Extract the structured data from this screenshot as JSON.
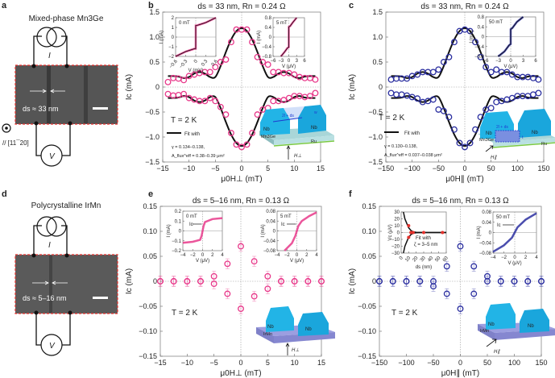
{
  "colors": {
    "pink": "#e8388a",
    "navy": "#2b2fa0",
    "nb": "#22b4e6",
    "irmn": "#9c9ee0",
    "mn3ge": "#a9d6d8",
    "ru": "#7ac943",
    "sem_border": "#e5322d"
  },
  "panels": {
    "a": {
      "letter": "a",
      "title": "Mixed-phase Mn3Ge",
      "current_label": "I",
      "voltage_label": "V",
      "ds_label": "ds ≈ 33 nm",
      "orientation": "// [11¯20]"
    },
    "d": {
      "letter": "d",
      "title": "Polycrystalline IrMn",
      "current_label": "I",
      "voltage_label": "V",
      "ds_label": "ds ≈ 5–16 nm"
    },
    "b": {
      "letter": "b",
      "temperature": "T = 2 K",
      "legend": "Fit with",
      "gamma": "γ = 0.134–0.138,",
      "aflux": "A_flux^eff = 0.38–0.39 μm²",
      "device": {
        "nb1": "Nb",
        "nb2": "Nb",
        "layer": "Mn3Ge",
        "sub": "Ru",
        "field": "H⊥",
        "gap": "2l + ds",
        "w": "w"
      }
    },
    "c": {
      "letter": "c",
      "temperature": "T = 2 K",
      "legend": "Fit with",
      "gamma": "γ = 0.130–0.138,",
      "aflux": "A_flux^eff = 0.037–0.038 μm²",
      "device": {
        "nb1": "Nb",
        "nb2": "Nb",
        "layer": "Mn3Ge",
        "sub": "Ru",
        "field": "H∥",
        "gap": "2l + ds",
        "w": "t"
      }
    },
    "e": {
      "letter": "e",
      "temperature": "T = 2 K",
      "device": {
        "nb1": "Nb",
        "nb2": "Nb",
        "layer": "IrMn",
        "field": "H⊥"
      }
    },
    "f": {
      "letter": "f",
      "temperature": "T = 2 K",
      "device": {
        "nb1": "Nb",
        "nb2": "Nb",
        "layer": "IrMn",
        "field": "H∥"
      }
    }
  },
  "chart_data": [
    {
      "id": "b",
      "type": "scatter",
      "title": "ds = 33 nm, Rn = 0.24 Ω",
      "xlabel": "μ0H⊥ (mT)",
      "ylabel": "Ic (mA)",
      "xlim": [
        -15,
        15
      ],
      "ylim": [
        -1.5,
        1.5
      ],
      "xticks": [
        -15,
        -10,
        -5,
        0,
        5,
        10,
        15
      ],
      "yticks": [
        -1.5,
        -1.0,
        -0.5,
        0,
        0.5,
        1.0,
        1.5
      ],
      "ytick_labels": [
        "−1.5",
        "−1.0",
        "−0.5",
        "0",
        "0.5",
        "1.0",
        "1.5"
      ],
      "x": [
        -14,
        -13,
        -12,
        -11,
        -10,
        -9,
        -8,
        -7,
        -6,
        -5,
        -4,
        -3,
        -2,
        -1,
        0,
        1,
        2,
        3,
        4,
        5,
        6,
        7,
        8,
        9,
        10,
        11,
        12,
        13,
        14
      ],
      "series": [
        {
          "name": "Ic+ data",
          "values": [
            0.1,
            0.18,
            0.17,
            0.14,
            0.22,
            0.25,
            0.28,
            0.3,
            0.3,
            0.4,
            0.5,
            0.55,
            0.9,
            1.15,
            1.15,
            1.15,
            0.9,
            0.6,
            0.5,
            0.45,
            0.3,
            0.3,
            0.28,
            0.28,
            0.25,
            0.2,
            0.18,
            0.18,
            0.15
          ]
        },
        {
          "name": "Ic− data",
          "values": [
            -0.14,
            -0.17,
            -0.16,
            -0.14,
            -0.22,
            -0.25,
            -0.28,
            -0.28,
            -0.22,
            -0.28,
            -0.4,
            -0.55,
            -0.92,
            -1.15,
            -1.2,
            -1.15,
            -0.92,
            -0.55,
            -0.45,
            -0.42,
            -0.28,
            -0.28,
            -0.26,
            -0.22,
            -0.18,
            -0.18,
            -0.2,
            -0.18,
            -0.12
          ]
        },
        {
          "name": "Fit",
          "values": [
            0.22,
            0.22,
            0.21,
            0.18,
            0.2,
            0.27,
            0.3,
            0.27,
            0.2,
            0.2,
            0.42,
            0.7,
            0.95,
            1.12,
            1.18,
            1.12,
            0.95,
            0.7,
            0.42,
            0.2,
            0.2,
            0.27,
            0.3,
            0.27,
            0.2,
            0.18,
            0.21,
            0.22,
            0.22
          ],
          "mirror": true
        }
      ],
      "insets": [
        {
          "label": "0 mT",
          "xlabel": "V (mV)",
          "ylabel": "I (mA)",
          "xlim": [
            -0.6,
            0.6
          ],
          "ylim": [
            -2,
            2
          ],
          "xticks": [
            -0.6,
            -0.3,
            0,
            0.3,
            0.6
          ],
          "yticks": [
            -2,
            -1,
            0,
            1,
            2
          ],
          "rotate_x": true,
          "curve": {
            "x": [
              -0.6,
              -0.3,
              -0.05,
              -0.01,
              0,
              0,
              0.01,
              0.05,
              0.3,
              0.6
            ],
            "y": [
              -2,
              -1.5,
              -1.22,
              -1.2,
              -1.2,
              1.2,
              1.2,
              1.22,
              1.5,
              2
            ]
          }
        },
        {
          "label": "5 mT",
          "xlabel": "V (μV)",
          "ylabel": "I (mA)",
          "xlim": [
            -6,
            6
          ],
          "ylim": [
            -0.8,
            0.8
          ],
          "xticks": [
            -6,
            -3,
            0,
            3,
            6
          ],
          "yticks": [
            -0.8,
            -0.4,
            0,
            0.4,
            0.8
          ],
          "curve": {
            "x": [
              -3,
              -1.5,
              -0.5,
              0,
              0,
              0.5,
              1.5,
              3
            ],
            "y": [
              -0.8,
              -0.6,
              -0.45,
              -0.42,
              0.42,
              0.45,
              0.6,
              0.8
            ]
          }
        }
      ]
    },
    {
      "id": "c",
      "type": "scatter",
      "title": "ds = 33 nm, Rn = 0.24 Ω",
      "xlabel": "μ0H∥ (mT)",
      "ylabel": "Ic (mA)",
      "xlim": [
        -150,
        150
      ],
      "ylim": [
        -1.5,
        1.5
      ],
      "xticks": [
        -150,
        -100,
        -50,
        0,
        50,
        100,
        150
      ],
      "yticks": [
        -1.5,
        -1.0,
        -0.5,
        0,
        0.5,
        1.0,
        1.5
      ],
      "ytick_labels": [
        "−1.5",
        "−1.0",
        "−0.5",
        "0",
        "0.5",
        "1.0",
        "1.5"
      ],
      "x": [
        -140,
        -130,
        -120,
        -110,
        -100,
        -90,
        -80,
        -70,
        -60,
        -50,
        -40,
        -30,
        -20,
        -10,
        0,
        10,
        20,
        30,
        40,
        50,
        60,
        70,
        80,
        90,
        100,
        110,
        120,
        130,
        140
      ],
      "series": [
        {
          "name": "Ic+ data",
          "values": [
            0.15,
            0.17,
            0.17,
            0.17,
            0.22,
            0.25,
            0.3,
            0.3,
            0.3,
            0.35,
            0.5,
            0.6,
            0.9,
            1.12,
            1.15,
            1.12,
            0.9,
            0.6,
            0.4,
            0.3,
            0.35,
            0.3,
            0.3,
            0.25,
            0.2,
            0.2,
            0.2,
            0.18,
            0.15
          ]
        },
        {
          "name": "Ic− data",
          "values": [
            -0.12,
            -0.15,
            -0.15,
            -0.17,
            -0.2,
            -0.23,
            -0.3,
            -0.28,
            -0.25,
            -0.45,
            -0.48,
            -0.6,
            -0.85,
            -1.12,
            -1.2,
            -1.12,
            -0.85,
            -0.6,
            -0.45,
            -0.42,
            -0.3,
            -0.28,
            -0.25,
            -0.22,
            -0.18,
            -0.18,
            -0.18,
            -0.15,
            -0.12
          ]
        },
        {
          "name": "Fit",
          "values": [
            0.22,
            0.22,
            0.21,
            0.18,
            0.2,
            0.27,
            0.3,
            0.27,
            0.2,
            0.2,
            0.42,
            0.7,
            0.95,
            1.12,
            1.18,
            1.12,
            0.95,
            0.7,
            0.42,
            0.2,
            0.2,
            0.27,
            0.3,
            0.27,
            0.2,
            0.18,
            0.21,
            0.22,
            0.22
          ],
          "mirror": true
        }
      ],
      "insets": [
        {
          "label": "50 mT",
          "xlabel": "V (μV)",
          "ylabel": "I (mA)",
          "xlim": [
            -6,
            6
          ],
          "ylim": [
            -0.8,
            0.8
          ],
          "xticks": [
            -6,
            -3,
            0,
            3,
            6
          ],
          "yticks": [
            -0.8,
            -0.4,
            0,
            0.4,
            0.8
          ],
          "curve": {
            "x": [
              -3,
              -1.5,
              -0.4,
              0,
              0,
              0.4,
              1.5,
              3
            ],
            "y": [
              -0.8,
              -0.6,
              -0.35,
              -0.3,
              0.3,
              0.35,
              0.6,
              0.8
            ]
          }
        }
      ]
    },
    {
      "id": "e",
      "type": "scatter",
      "title": "ds = 5–16 nm, Rn = 0.13 Ω",
      "xlabel": "μ0H⊥ (mT)",
      "ylabel": "Ic (mA)",
      "xlim": [
        -15,
        15
      ],
      "ylim": [
        -0.15,
        0.15
      ],
      "xticks": [
        -15,
        -10,
        -5,
        0,
        5,
        10,
        15
      ],
      "yticks": [
        -0.15,
        -0.1,
        -0.05,
        0,
        0.05,
        0.1,
        0.15
      ],
      "ytick_labels": [
        "−0.15",
        "−0.10",
        "−0.05",
        "0",
        "0.05",
        "0.10",
        "0.15"
      ],
      "error": 0.01,
      "x": [
        -15,
        -12.5,
        -10,
        -7.5,
        -5,
        -2.5,
        0,
        2.5,
        5,
        7.5,
        10,
        12.5,
        15
      ],
      "series": [
        {
          "name": "Ic+ data",
          "values": [
            0,
            0,
            0,
            0,
            0.01,
            0.035,
            0.07,
            0.04,
            0.01,
            0,
            0,
            0,
            0
          ]
        },
        {
          "name": "Ic− data",
          "values": [
            0,
            0,
            0,
            0,
            -0.005,
            -0.025,
            -0.055,
            -0.03,
            -0.015,
            0,
            0,
            0,
            0
          ]
        }
      ],
      "insets": [
        {
          "label": "0 mT",
          "arrow_label": "Ic",
          "xlabel": "V (μV)",
          "ylabel": "I (mA)",
          "xlim": [
            -4,
            4
          ],
          "ylim": [
            -0.2,
            0.2
          ],
          "xticks": [
            -4,
            -2,
            0,
            2,
            4
          ],
          "yticks": [
            -0.2,
            -0.1,
            0,
            0.1,
            0.2
          ],
          "curve": {
            "x": [
              -4,
              -2,
              -0.5,
              -0.2,
              0,
              0.2,
              0.5,
              2,
              4
            ],
            "y": [
              -0.12,
              -0.11,
              -0.09,
              -0.05,
              0,
              0.05,
              0.09,
              0.12,
              0.13
            ]
          }
        },
        {
          "label": "5 mT",
          "arrow_label": "Ic",
          "xlabel": "V (μV)",
          "ylabel": "I (mA)",
          "xlim": [
            -4,
            4
          ],
          "ylim": [
            -0.08,
            0.08
          ],
          "xticks": [
            -4,
            -2,
            0,
            2,
            4
          ],
          "yticks": [
            -0.08,
            -0.04,
            0,
            0.04,
            0.08
          ],
          "curve": {
            "x": [
              -2.5,
              -1,
              -0.3,
              0,
              0.3,
              1,
              2.5,
              4
            ],
            "y": [
              -0.08,
              -0.05,
              -0.02,
              0,
              0.02,
              0.04,
              0.06,
              0.075
            ]
          }
        }
      ]
    },
    {
      "id": "f",
      "type": "scatter",
      "title": "ds = 5–16 nm, Rn = 0.13 Ω",
      "xlabel": "μ0H∥ (mT)",
      "ylabel": "Ic (mA)",
      "xlim": [
        -150,
        150
      ],
      "ylim": [
        -0.15,
        0.15
      ],
      "xticks": [
        -150,
        -100,
        -50,
        0,
        50,
        100,
        150
      ],
      "yticks": [
        -0.15,
        -0.1,
        -0.05,
        0,
        0.05,
        0.1,
        0.15
      ],
      "ytick_labels": [
        "−0.15",
        "−0.10",
        "−0.05",
        "0",
        "0.05",
        "0.10",
        "0.15"
      ],
      "error": 0.01,
      "x": [
        -150,
        -125,
        -100,
        -75,
        -50,
        -25,
        0,
        25,
        50,
        75,
        100,
        125,
        150
      ],
      "series": [
        {
          "name": "Ic+ data",
          "values": [
            0,
            0,
            0,
            0,
            0,
            0.03,
            0.07,
            0.03,
            0.01,
            0,
            0,
            0,
            0
          ]
        },
        {
          "name": "Ic− data",
          "values": [
            0,
            0,
            0,
            0,
            -0.01,
            -0.025,
            -0.055,
            -0.025,
            0,
            0,
            0,
            0,
            0
          ]
        }
      ],
      "insets": [
        {
          "label": "",
          "fit_text": "Fit with",
          "fit_text2": "ζ = 3–5 nm",
          "xlabel": "ds (nm)",
          "ylabel": "Vc (μV)",
          "xlim": [
            0,
            60
          ],
          "ylim": [
            -30,
            30
          ],
          "xticks": [
            0,
            10,
            20,
            30,
            40,
            50,
            60
          ],
          "yticks": [
            -30,
            -20,
            -10,
            0,
            10,
            20,
            30
          ],
          "rotate_x": true,
          "curve": {
            "x": [
              3,
              5,
              8,
              10,
              13,
              16,
              20,
              30,
              60
            ],
            "y": [
              30,
              20,
              12,
              7,
              3,
              1,
              0.3,
              0,
              0
            ]
          },
          "curve_mirror": true,
          "points": {
            "x": [
              10,
              10,
              13,
              16,
              30,
              55
            ],
            "y": [
              10,
              -7,
              0,
              0,
              0,
              0
            ]
          }
        },
        {
          "label": "50 mT",
          "arrow_label": "Ic",
          "xlabel": "V (μV)",
          "ylabel": "I (mA)",
          "xlim": [
            -4,
            4
          ],
          "ylim": [
            -0.08,
            0.08
          ],
          "xticks": [
            -4,
            -2,
            0,
            2,
            4
          ],
          "yticks": [
            -0.08,
            -0.04,
            0,
            0.04,
            0.08
          ],
          "curve": {
            "x": [
              -4,
              -2,
              -0.5,
              0,
              0.5,
              2,
              4
            ],
            "y": [
              -0.075,
              -0.05,
              -0.02,
              0,
              0.02,
              0.05,
              0.075
            ]
          }
        }
      ]
    }
  ]
}
